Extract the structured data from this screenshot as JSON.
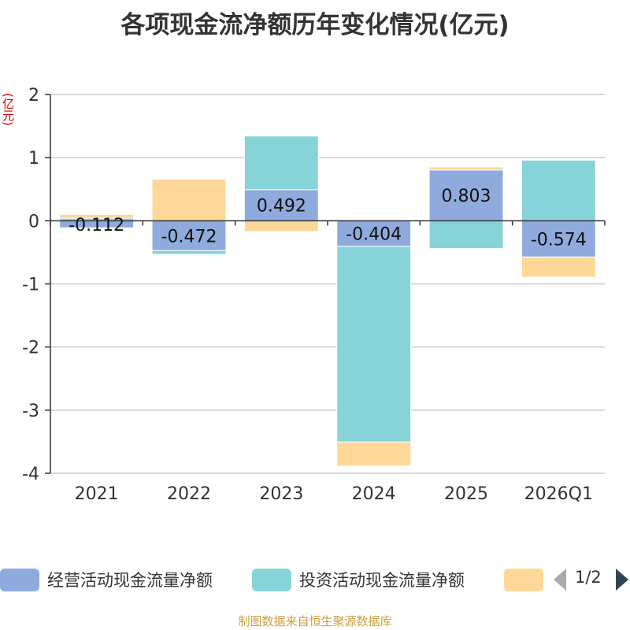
{
  "title": "各项现金流净额历年变化情况(亿元)",
  "unit": "(亿元)",
  "source": "制图数据来自恒生聚源数据库",
  "pager": {
    "text": "1/2",
    "prev_icon": "triangle-left-icon",
    "next_icon": "triangle-right-icon"
  },
  "legend": {
    "items": [
      {
        "label": "经营活动现金流量净额",
        "color": "#8faadc"
      },
      {
        "label": "投资活动现金流量净额",
        "color": "#86d4d8"
      },
      {
        "label": "",
        "color": "#fdd899"
      }
    ]
  },
  "chart_data": {
    "type": "bar",
    "stacked": true,
    "categories": [
      "2021",
      "2022",
      "2023",
      "2024",
      "2025",
      "2026Q1"
    ],
    "ylim": [
      -4,
      2
    ],
    "yticks": [
      2,
      1,
      0,
      -1,
      -2,
      -3,
      -4
    ],
    "grid": true,
    "legend_position": "bottom",
    "series": [
      {
        "name": "经营活动现金流量净额",
        "color": "#8faadc",
        "values": [
          -0.112,
          -0.472,
          0.492,
          -0.404,
          0.803,
          -0.574
        ],
        "labels": [
          "-0.112",
          "-0.472",
          "0.492",
          "-0.404",
          "0.803",
          "-0.574"
        ]
      },
      {
        "name": "投资活动现金流量净额",
        "color": "#86d4d8",
        "values": [
          0.04,
          -0.06,
          0.85,
          -3.1,
          -0.44,
          0.96
        ]
      },
      {
        "color": "#fdd899",
        "values": [
          0.06,
          0.66,
          -0.17,
          -0.38,
          0.05,
          -0.32
        ]
      }
    ]
  }
}
